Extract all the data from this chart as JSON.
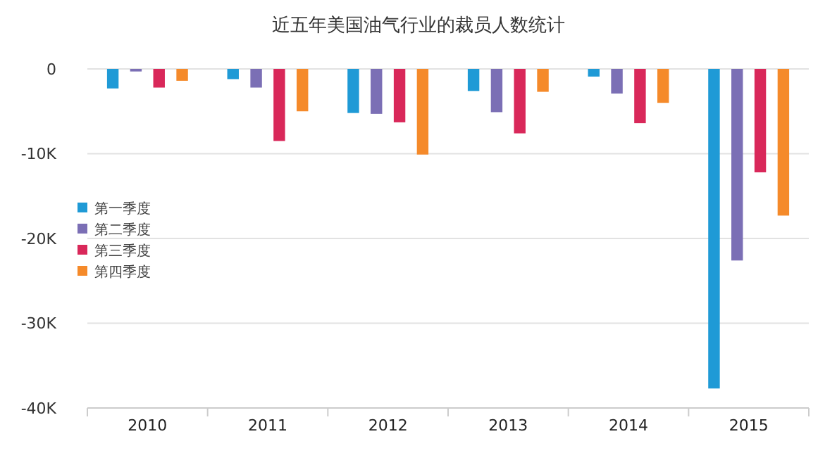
{
  "chart_data": {
    "type": "bar",
    "title": "近五年美国油气行业的裁员人数统计",
    "categories": [
      "2010",
      "2011",
      "2012",
      "2013",
      "2014",
      "2015"
    ],
    "series": [
      {
        "name": "第一季度",
        "color": "#1f9ad6",
        "values": [
          -2300,
          -1200,
          -5200,
          -2600,
          -900,
          -37700
        ]
      },
      {
        "name": "第二季度",
        "color": "#7b6fb5",
        "values": [
          -300,
          -2200,
          -5300,
          -5100,
          -2900,
          -22600
        ]
      },
      {
        "name": "第三季度",
        "color": "#d9285a",
        "values": [
          -2200,
          -8500,
          -6300,
          -7600,
          -6400,
          -12200
        ]
      },
      {
        "name": "第四季度",
        "color": "#f58a2a",
        "values": [
          -1400,
          -5000,
          -10100,
          -2700,
          -4000,
          -17300
        ]
      }
    ],
    "ylim": [
      -40000,
      0
    ],
    "yticks": [
      {
        "value": 0,
        "label": "0"
      },
      {
        "value": -10000,
        "label": "-10K"
      },
      {
        "value": -20000,
        "label": "-20K"
      },
      {
        "value": -30000,
        "label": "-30K"
      },
      {
        "value": -40000,
        "label": "-40K"
      }
    ],
    "grid": "y",
    "legend": "left"
  }
}
